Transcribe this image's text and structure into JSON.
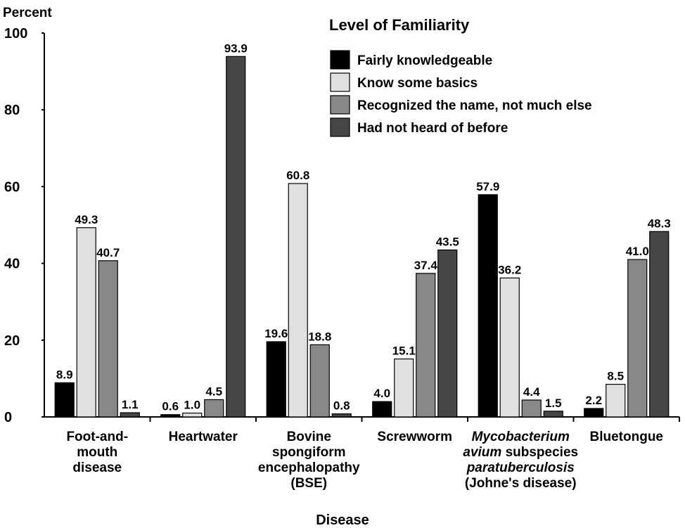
{
  "chart_data": {
    "type": "bar",
    "ylabel": "Percent",
    "xlabel": "Disease",
    "ylim": [
      0,
      100
    ],
    "yticks": [
      0,
      20,
      40,
      60,
      80,
      100
    ],
    "legend": {
      "title": "Level of Familiarity",
      "placement": "top-right"
    },
    "categories": [
      "Foot-and-mouth disease",
      "Heartwater",
      "Bovine spongiform encephalopathy (BSE)",
      "Screwworm",
      "Mycobacterium avium subspecies paratuberculosis (Johne's disease)",
      "Bluetongue"
    ],
    "category_lines": [
      [
        {
          "t": "Foot-and-"
        },
        {
          "t": "mouth"
        },
        {
          "t": "disease"
        }
      ],
      [
        {
          "t": "Heartwater"
        }
      ],
      [
        {
          "t": "Bovine"
        },
        {
          "t": "spongiform"
        },
        {
          "t": "encephalopathy"
        },
        {
          "t": "(BSE)"
        }
      ],
      [
        {
          "t": "Screwworm"
        }
      ],
      [
        {
          "t": "Mycobacterium",
          "i": true
        },
        {
          "t": "avium",
          "i": true,
          "rest": " subspecies"
        },
        {
          "t": "paratuberculosis",
          "i": true
        },
        {
          "t": "(Johne's disease)"
        }
      ],
      [
        {
          "t": "Bluetongue"
        }
      ]
    ],
    "series": [
      {
        "name": "Fairly knowledgeable",
        "color": "#000000",
        "values": [
          8.9,
          0.6,
          19.6,
          4.0,
          57.9,
          2.2
        ],
        "labels": [
          "8.9",
          "0.6",
          "19.6",
          "4.0",
          "57.9",
          "2.2"
        ]
      },
      {
        "name": "Know some basics",
        "color": "#e0e0e0",
        "values": [
          49.3,
          1.0,
          60.8,
          15.1,
          36.2,
          8.5
        ],
        "labels": [
          "49.3",
          "1.0",
          "60.8",
          "15.1",
          "36.2",
          "8.5"
        ]
      },
      {
        "name": "Recognized the name, not much else",
        "color": "#888888",
        "values": [
          40.7,
          4.5,
          18.8,
          37.4,
          4.4,
          41.0
        ],
        "labels": [
          "40.7",
          "4.5",
          "18.8",
          "37.4",
          "4.4",
          "41.0"
        ]
      },
      {
        "name": "Had not heard of before",
        "color": "#464646",
        "values": [
          1.1,
          93.9,
          0.8,
          43.5,
          1.5,
          48.3
        ],
        "labels": [
          "1.1",
          "93.9",
          "0.8",
          "43.5",
          "1.5",
          "48.3"
        ]
      }
    ]
  }
}
